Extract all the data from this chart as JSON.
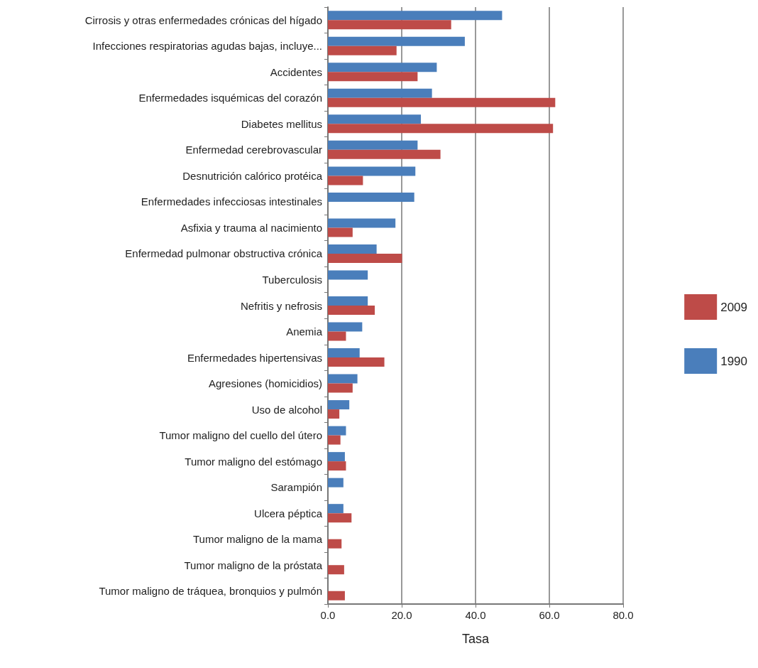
{
  "chart_data": {
    "type": "bar",
    "orientation": "horizontal",
    "xlabel": "Tasa",
    "categories": [
      "Cirrosis y otras enfermedades crónicas del hígado",
      "Infecciones respiratorias agudas bajas, incluye...",
      "Accidentes",
      "Enfermedades isquémicas del corazón",
      "Diabetes mellitus",
      "Enfermedad cerebrovascular",
      "Desnutrición calórico protéica",
      "Enfermedades infecciosas intestinales",
      "Asfixia y trauma al nacimiento",
      "Enfermedad pulmonar obstructiva crónica",
      "Tuberculosis",
      "Nefritis y nefrosis",
      "Anemia",
      "Enfermedades hipertensivas",
      "Agresiones (homicidios)",
      "Uso de alcohol",
      "Tumor maligno del cuello del útero",
      "Tumor maligno del estómago",
      "Sarampión",
      "Ulcera péptica",
      "Tumor maligno de la mama",
      "Tumor maligno de la próstata",
      "Tumor maligno de tráquea, bronquios y pulmón"
    ],
    "series": [
      {
        "name": "1990",
        "color": "#4a7ebb",
        "values": [
          47.2,
          37.1,
          29.5,
          28.2,
          25.2,
          24.3,
          23.7,
          23.4,
          18.3,
          13.2,
          10.8,
          10.8,
          9.3,
          8.6,
          8.0,
          5.8,
          4.9,
          4.6,
          4.2,
          4.2,
          null,
          null,
          null
        ]
      },
      {
        "name": "2009",
        "color": "#be4b48",
        "values": [
          33.4,
          18.6,
          24.3,
          61.6,
          61.0,
          30.5,
          9.5,
          null,
          6.7,
          20.1,
          null,
          12.7,
          4.9,
          15.3,
          6.7,
          3.1,
          3.4,
          4.9,
          null,
          6.4,
          3.7,
          4.4,
          4.6
        ]
      }
    ],
    "xlim": [
      0,
      80
    ],
    "xticks": [
      {
        "value": 0,
        "label": "0.0"
      },
      {
        "value": 20,
        "label": "20.0"
      },
      {
        "value": 40,
        "label": "40.0"
      },
      {
        "value": 60,
        "label": "60.0"
      },
      {
        "value": 80,
        "label": "80.0"
      }
    ],
    "grid": "x",
    "legend": "right"
  }
}
